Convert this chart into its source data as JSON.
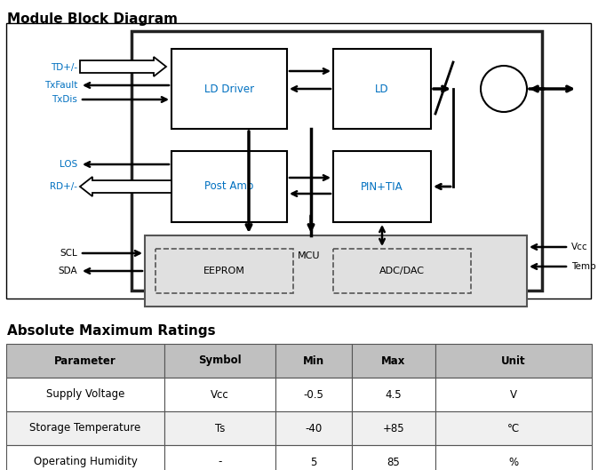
{
  "title": "Module Block Diagram",
  "table_title": "Absolute Maximum Ratings",
  "table_headers": [
    "Parameter",
    "Symbol",
    "Min",
    "Max",
    "Unit"
  ],
  "table_rows": [
    [
      "Supply Voltage",
      "Vcc",
      "-0.5",
      "4.5",
      "V"
    ],
    [
      "Storage Temperature",
      "Ts",
      "-40",
      "+85",
      "°C"
    ],
    [
      "Operating Humidity",
      "-",
      "5",
      "85",
      "%"
    ]
  ],
  "label_color_blue": "#0070c0",
  "label_color_black": "#000000",
  "bg_color": "#ffffff",
  "header_gray": "#c0c0c0",
  "row_colors": [
    "#f0f0f0",
    "#ffffff",
    "#f0f0f0"
  ]
}
